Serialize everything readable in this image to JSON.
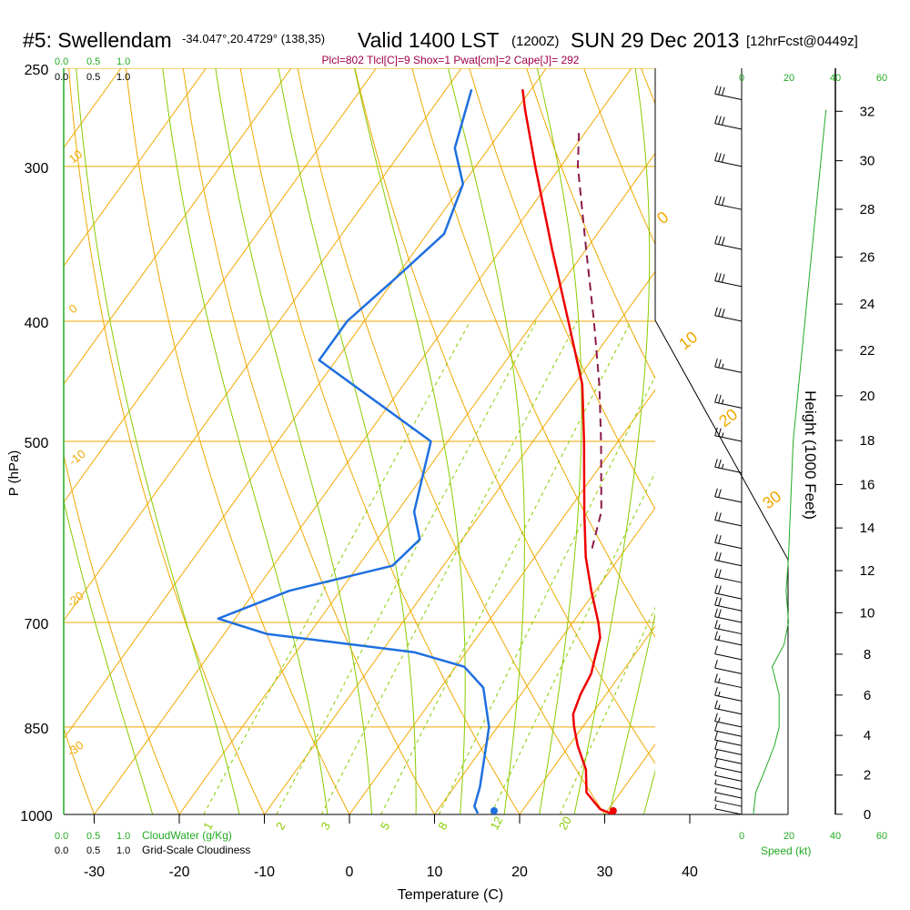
{
  "header": {
    "station": "#5: Swellendam",
    "coords": "-34.047°,20.4729° (138,35)",
    "valid": "Valid 1400 LST",
    "zulu": "(1200Z)",
    "date": "SUN 29 Dec 2013",
    "fcst": "[12hrFcst@0449z]"
  },
  "indices": "Plcl=802 Tlcl[C]=9 Shox=1 Pwat[cm]=2 Cape[J]= 292",
  "legend": {
    "cloudwater_label": "CloudWater (g/Kg)",
    "cloudiness_label": "Grid-Scale Cloudiness",
    "scale_ticks": [
      "0.0",
      "0.5",
      "1.0"
    ],
    "speed_label": "Speed (kt)",
    "speed_ticks": [
      "0",
      "20",
      "40",
      "60"
    ]
  },
  "colors": {
    "isotherm": "#f0a800",
    "dry_adiabat": "#f0a800",
    "moist_adiabat": "#88cc00",
    "mixing_ratio": "#88cc00",
    "temperature": "#ee0000",
    "dewpoint": "#1f6fe0",
    "parcel": "#8b1a4a",
    "speed_line": "#22aa22",
    "green_text": "#22aa22",
    "indices_text": "#a0004a"
  },
  "chart_data": {
    "type": "skew-t",
    "xlabel": "Temperature (C)",
    "ylabel": "P (hPa)",
    "y2label": "Height (1000 Feet)",
    "x_ticks": [
      -30,
      -20,
      -10,
      0,
      10,
      20,
      30,
      40
    ],
    "pressure_ticks": [
      250,
      300,
      400,
      500,
      700,
      850,
      1000
    ],
    "height_ticks_kft": [
      0,
      2,
      4,
      6,
      8,
      10,
      12,
      14,
      16,
      18,
      20,
      22,
      24,
      26,
      28,
      30,
      32
    ],
    "isotherm_labels": [
      -30,
      -20,
      -10,
      0,
      10,
      20,
      30
    ],
    "mixing_ratio_labels": [
      1,
      2,
      3,
      5,
      8,
      12,
      20
    ],
    "mixing_ratios": [
      1,
      2,
      3,
      5,
      8,
      12,
      20
    ],
    "surface": {
      "temperature": 31,
      "dewpoint": 17
    },
    "temperature_profile": [
      {
        "p": 1000,
        "t": 31
      },
      {
        "p": 990,
        "t": 29
      },
      {
        "p": 960,
        "t": 26
      },
      {
        "p": 920,
        "t": 24
      },
      {
        "p": 880,
        "t": 21
      },
      {
        "p": 850,
        "t": 19
      },
      {
        "p": 830,
        "t": 17.8
      },
      {
        "p": 800,
        "t": 17
      },
      {
        "p": 770,
        "t": 16.5
      },
      {
        "p": 745,
        "t": 15.5
      },
      {
        "p": 720,
        "t": 14.5
      },
      {
        "p": 700,
        "t": 13
      },
      {
        "p": 660,
        "t": 9.5
      },
      {
        "p": 620,
        "t": 6
      },
      {
        "p": 570,
        "t": 2
      },
      {
        "p": 500,
        "t": -4
      },
      {
        "p": 450,
        "t": -9
      },
      {
        "p": 400,
        "t": -16
      },
      {
        "p": 350,
        "t": -24
      },
      {
        "p": 300,
        "t": -33
      },
      {
        "p": 270,
        "t": -39
      },
      {
        "p": 260,
        "t": -41
      }
    ],
    "dewpoint_profile": [
      {
        "p": 998,
        "t": 15
      },
      {
        "p": 985,
        "t": 14
      },
      {
        "p": 950,
        "t": 13
      },
      {
        "p": 850,
        "t": 9
      },
      {
        "p": 790,
        "t": 5
      },
      {
        "p": 760,
        "t": 1
      },
      {
        "p": 740,
        "t": -6
      },
      {
        "p": 715,
        "t": -25
      },
      {
        "p": 695,
        "t": -32
      },
      {
        "p": 660,
        "t": -26
      },
      {
        "p": 630,
        "t": -16
      },
      {
        "p": 600,
        "t": -15
      },
      {
        "p": 570,
        "t": -18
      },
      {
        "p": 500,
        "t": -22
      },
      {
        "p": 430,
        "t": -42
      },
      {
        "p": 400,
        "t": -42
      },
      {
        "p": 370,
        "t": -40
      },
      {
        "p": 340,
        "t": -38
      },
      {
        "p": 310,
        "t": -40
      },
      {
        "p": 290,
        "t": -44
      },
      {
        "p": 260,
        "t": -47
      }
    ],
    "parcel_profile": [
      {
        "p": 610,
        "t": 6
      },
      {
        "p": 570,
        "t": 4
      },
      {
        "p": 500,
        "t": -2
      },
      {
        "p": 450,
        "t": -7
      },
      {
        "p": 400,
        "t": -13
      },
      {
        "p": 350,
        "t": -20
      },
      {
        "p": 300,
        "t": -28
      },
      {
        "p": 280,
        "t": -31
      }
    ],
    "wind_speed_kt": [
      {
        "p": 1000,
        "s": 5
      },
      {
        "p": 960,
        "s": 6
      },
      {
        "p": 920,
        "s": 10
      },
      {
        "p": 880,
        "s": 14
      },
      {
        "p": 850,
        "s": 16
      },
      {
        "p": 800,
        "s": 16
      },
      {
        "p": 760,
        "s": 13
      },
      {
        "p": 730,
        "s": 18
      },
      {
        "p": 700,
        "s": 20
      },
      {
        "p": 660,
        "s": 19
      },
      {
        "p": 620,
        "s": 20
      }
    ],
    "wind_barbs": [
      {
        "p": 1000,
        "ws": 5
      },
      {
        "p": 985,
        "ws": 5
      },
      {
        "p": 970,
        "ws": 5
      },
      {
        "p": 955,
        "ws": 5
      },
      {
        "p": 940,
        "ws": 5
      },
      {
        "p": 925,
        "ws": 10
      },
      {
        "p": 910,
        "ws": 10
      },
      {
        "p": 895,
        "ws": 10
      },
      {
        "p": 880,
        "ws": 10
      },
      {
        "p": 865,
        "ws": 10
      },
      {
        "p": 850,
        "ws": 15
      },
      {
        "p": 830,
        "ws": 15
      },
      {
        "p": 810,
        "ws": 15
      },
      {
        "p": 790,
        "ws": 15
      },
      {
        "p": 770,
        "ws": 10
      },
      {
        "p": 750,
        "ws": 10
      },
      {
        "p": 730,
        "ws": 15
      },
      {
        "p": 715,
        "ws": 15
      },
      {
        "p": 700,
        "ws": 20
      },
      {
        "p": 685,
        "ws": 20
      },
      {
        "p": 670,
        "ws": 20
      },
      {
        "p": 650,
        "ws": 20
      },
      {
        "p": 630,
        "ws": 20
      },
      {
        "p": 610,
        "ws": 20
      },
      {
        "p": 585,
        "ws": 20
      },
      {
        "p": 560,
        "ws": 20
      },
      {
        "p": 530,
        "ws": 25
      },
      {
        "p": 500,
        "ws": 25
      },
      {
        "p": 470,
        "ws": 25
      },
      {
        "p": 440,
        "ws": 25
      },
      {
        "p": 400,
        "ws": 30
      },
      {
        "p": 375,
        "ws": 30
      },
      {
        "p": 350,
        "ws": 30
      },
      {
        "p": 325,
        "ws": 30
      },
      {
        "p": 300,
        "ws": 30
      },
      {
        "p": 280,
        "ws": 30
      },
      {
        "p": 265,
        "ws": 30
      }
    ]
  }
}
